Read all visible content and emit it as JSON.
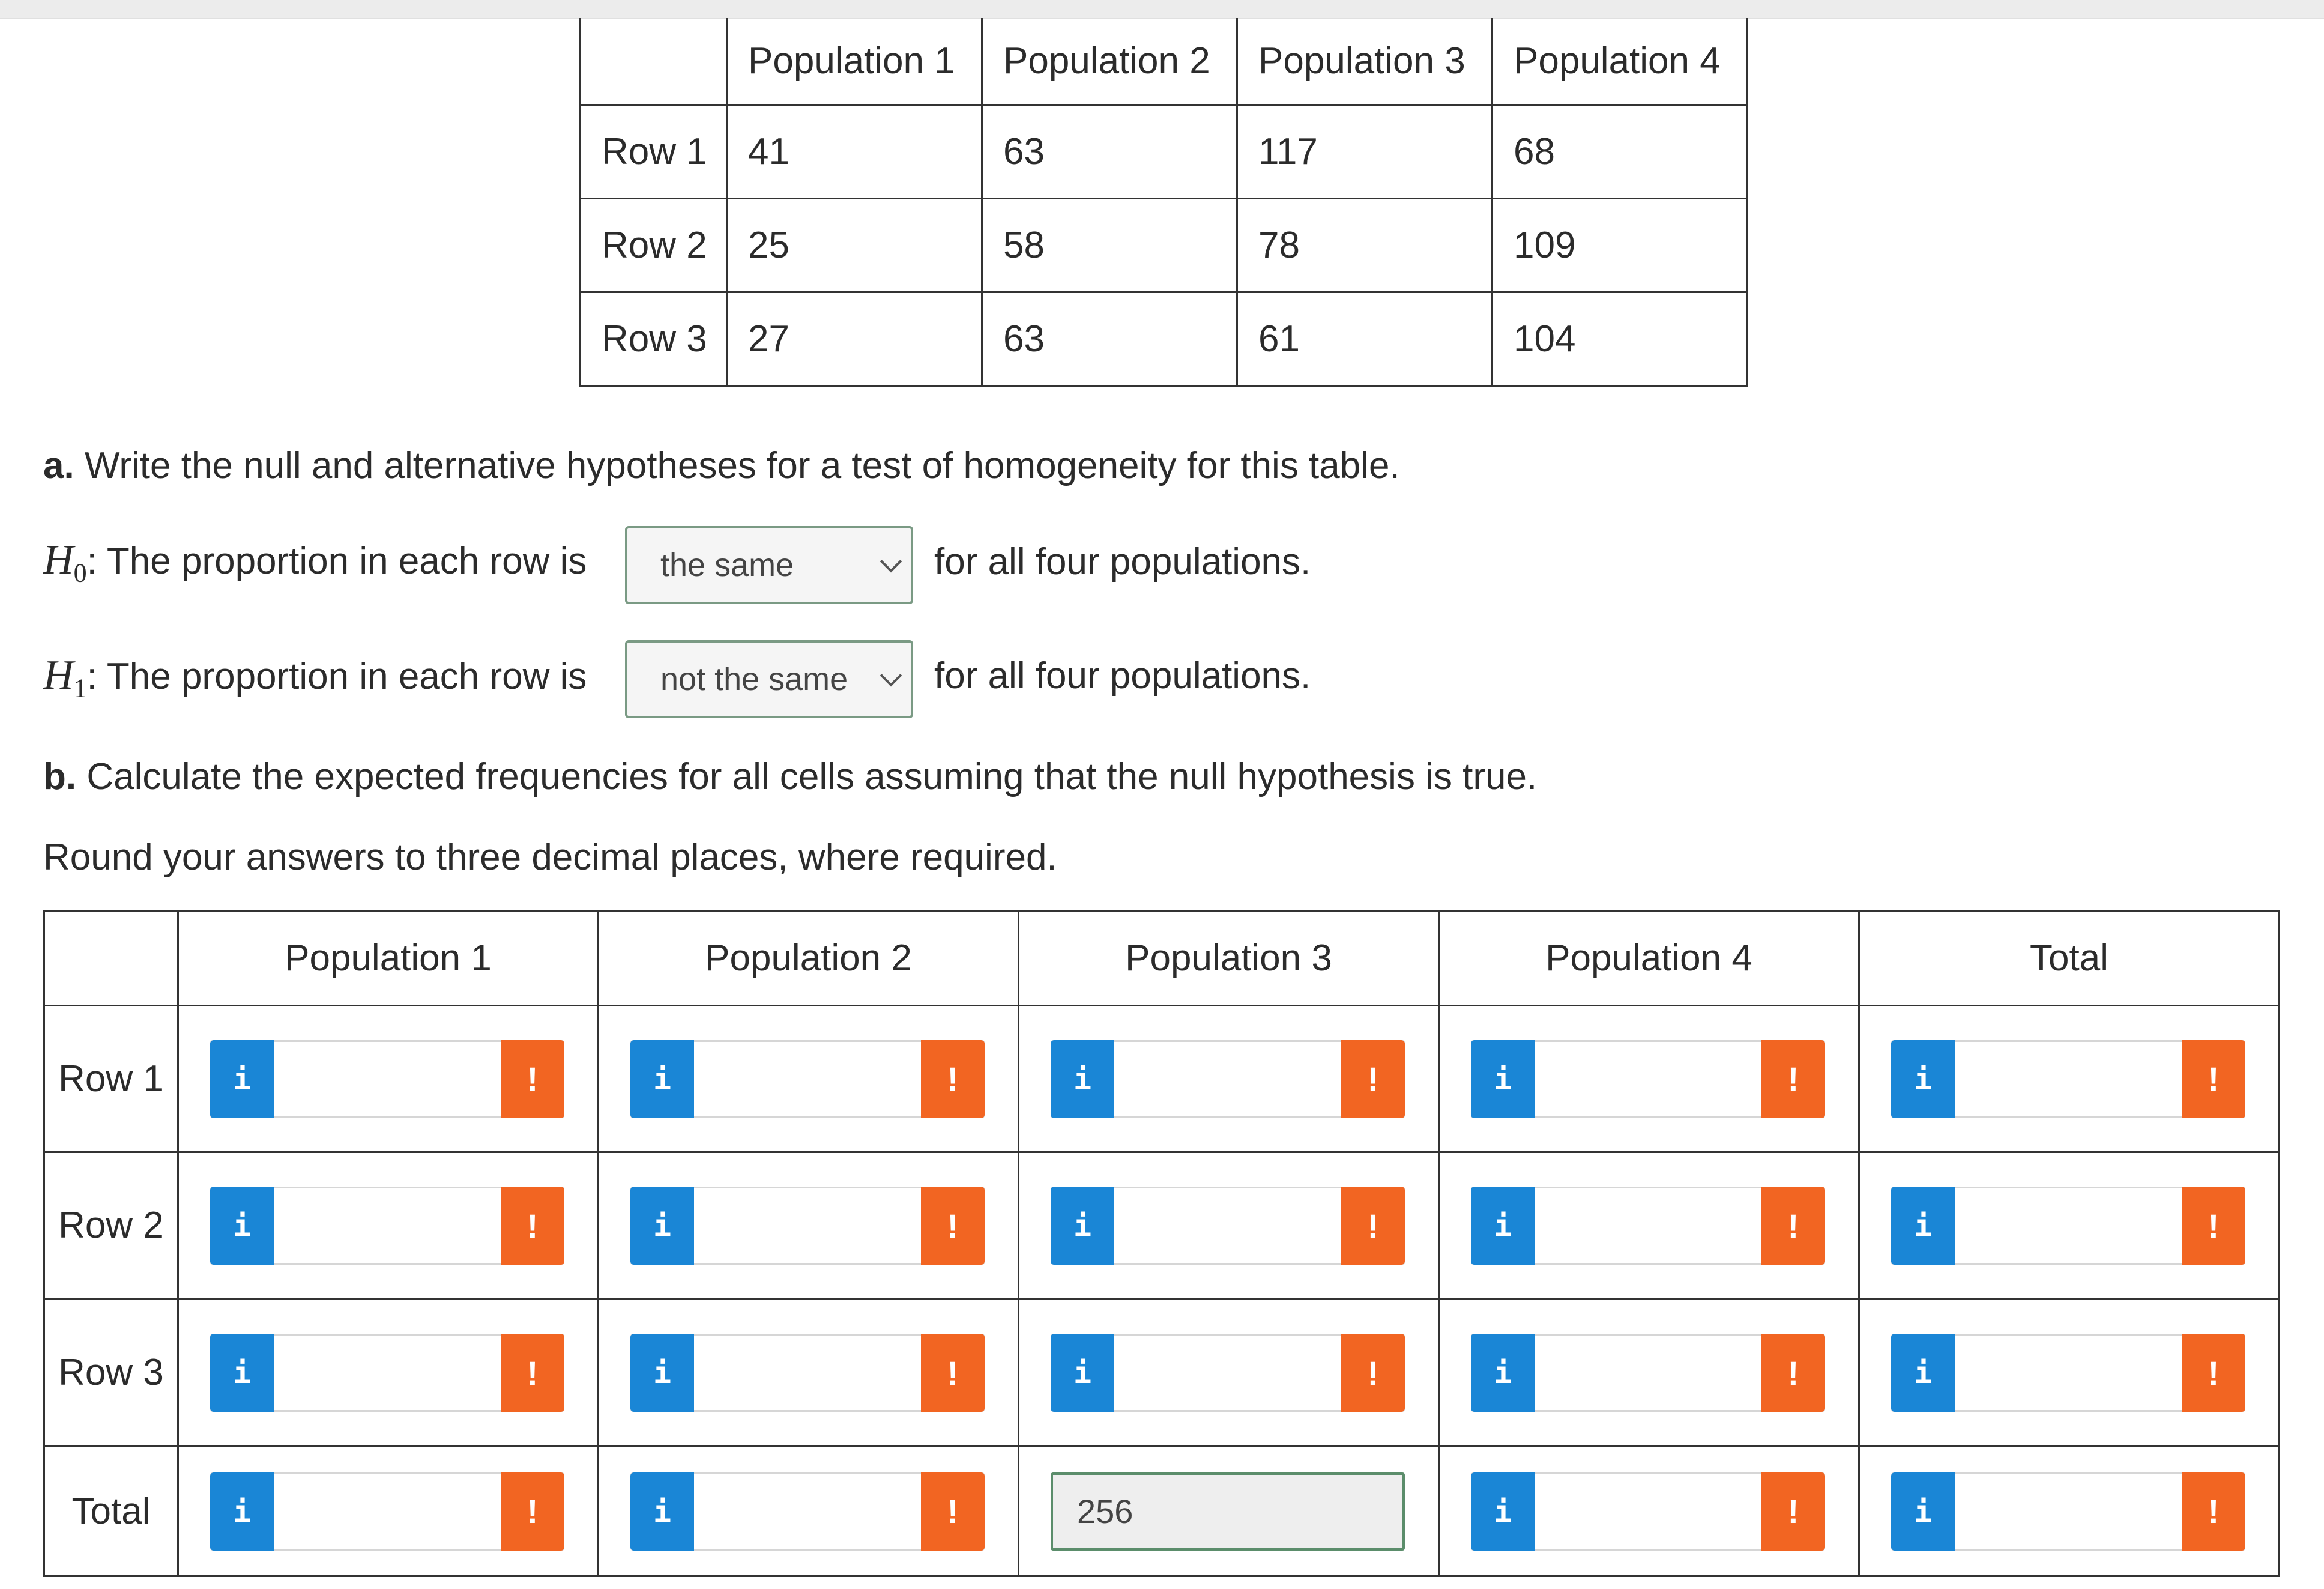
{
  "data_table": {
    "headers": [
      "",
      "Population 1",
      "Population 2",
      "Population 3",
      "Population 4"
    ],
    "rows": [
      {
        "label": "Row 1",
        "values": [
          "41",
          "63",
          "117",
          "68"
        ]
      },
      {
        "label": "Row 2",
        "values": [
          "25",
          "58",
          "78",
          "109"
        ]
      },
      {
        "label": "Row 3",
        "values": [
          "27",
          "63",
          "61",
          "104"
        ]
      }
    ]
  },
  "part_a": {
    "prefix": "a.",
    "text": "Write the null and alternative hypotheses for a test of homogeneity for this table.",
    "h0": {
      "symbol": "H",
      "sub": "0",
      "text": ": The proportion in each row is",
      "selected": "the same",
      "after": "for all four populations."
    },
    "h1": {
      "symbol": "H",
      "sub": "1",
      "text": ": The proportion in each row is",
      "selected": "not the same",
      "after": "for all four populations."
    }
  },
  "part_b": {
    "prefix": "b.",
    "text": "Calculate the expected frequencies for all cells assuming that the null hypothesis is true.",
    "instruction": "Round your answers to three decimal places, where required."
  },
  "answer_grid": {
    "headers": [
      "",
      "Population 1",
      "Population 2",
      "Population 3",
      "Population 4",
      "Total"
    ],
    "row_labels": [
      "Row 1",
      "Row 2",
      "Row 3",
      "Total"
    ],
    "prefilled_total_pop3": "256",
    "info_glyph": "i",
    "error_glyph": "!"
  },
  "icons": {
    "info": "info-icon",
    "error": "exclamation-icon",
    "dropdown": "chevron-down-icon"
  },
  "colors": {
    "info": "#1a86d6",
    "error": "#f26522",
    "select_border": "#7a9a84"
  }
}
